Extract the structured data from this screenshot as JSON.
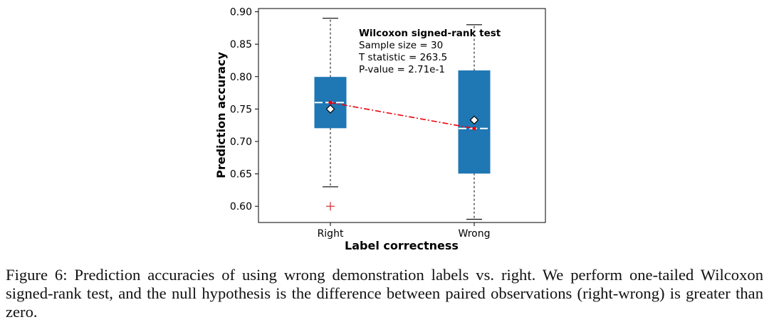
{
  "chart_data": {
    "type": "box",
    "xlabel": "Label correctness",
    "ylabel": "Prediction accuracy",
    "ylim": [
      0.575,
      0.905
    ],
    "yticks": [
      "0.60",
      "0.65",
      "0.70",
      "0.75",
      "0.80",
      "0.85",
      "0.90"
    ],
    "categories": [
      "Right",
      "Wrong"
    ],
    "boxes": [
      {
        "category": "Right",
        "whisker_low": 0.63,
        "q1": 0.721,
        "median": 0.76,
        "mean": 0.75,
        "q3": 0.799,
        "whisker_high": 0.89,
        "outliers": [
          0.6
        ]
      },
      {
        "category": "Wrong",
        "whisker_low": 0.58,
        "q1": 0.651,
        "median": 0.72,
        "mean": 0.733,
        "q3": 0.809,
        "whisker_high": 0.88,
        "outliers": []
      }
    ],
    "median_line": [
      0.76,
      0.72
    ],
    "box_color": "#1f77b4",
    "median_color": "#ffffff",
    "outlier_color": "#d62728",
    "trend_color": "#e8000b",
    "annotation": {
      "title": "Wilcoxon signed-rank test",
      "lines": [
        "Sample size = 30",
        "T statistic = 263.5",
        "P-value = 2.71e-1"
      ]
    }
  },
  "caption": "Figure 6: Prediction accuracies of using wrong demonstration labels vs. right. We perform one-tailed Wilcoxon signed-rank test, and the null hypothesis is the difference between paired observations (right-wrong) is greater than zero."
}
